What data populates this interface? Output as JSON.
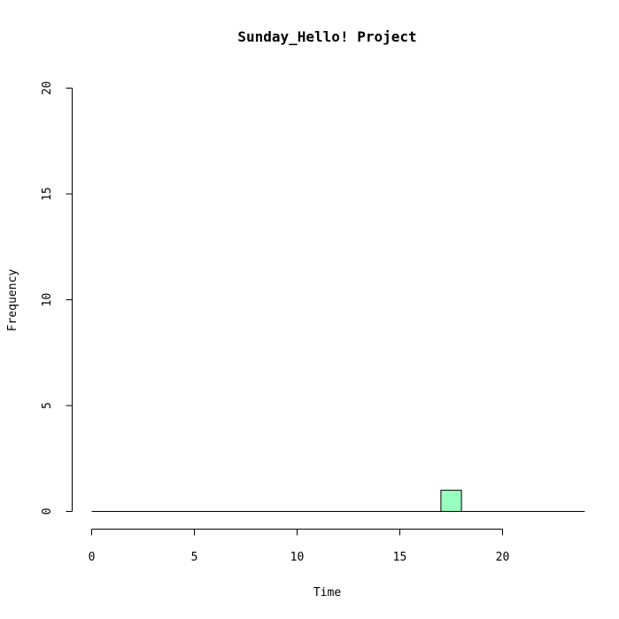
{
  "chart_data": {
    "type": "bar",
    "title": "Sunday_Hello! Project",
    "xlabel": "Time",
    "ylabel": "Frequency",
    "xlim": [
      0,
      24
    ],
    "ylim": [
      0,
      20
    ],
    "x_ticks": [
      0,
      5,
      10,
      15,
      20
    ],
    "y_ticks": [
      0,
      5,
      10,
      15,
      20
    ],
    "bin_width": 1,
    "bins": [
      {
        "start": 0,
        "count": 0
      },
      {
        "start": 1,
        "count": 0
      },
      {
        "start": 2,
        "count": 0
      },
      {
        "start": 3,
        "count": 0
      },
      {
        "start": 4,
        "count": 0
      },
      {
        "start": 5,
        "count": 0
      },
      {
        "start": 6,
        "count": 0
      },
      {
        "start": 7,
        "count": 0
      },
      {
        "start": 8,
        "count": 0
      },
      {
        "start": 9,
        "count": 0
      },
      {
        "start": 10,
        "count": 0
      },
      {
        "start": 11,
        "count": 0
      },
      {
        "start": 12,
        "count": 0
      },
      {
        "start": 13,
        "count": 0
      },
      {
        "start": 14,
        "count": 0
      },
      {
        "start": 15,
        "count": 0
      },
      {
        "start": 16,
        "count": 0
      },
      {
        "start": 17,
        "count": 1
      },
      {
        "start": 18,
        "count": 0
      },
      {
        "start": 19,
        "count": 0
      },
      {
        "start": 20,
        "count": 0
      },
      {
        "start": 21,
        "count": 0
      },
      {
        "start": 22,
        "count": 0
      },
      {
        "start": 23,
        "count": 0
      }
    ],
    "bar_color": "#98FFBF",
    "grid": false
  }
}
